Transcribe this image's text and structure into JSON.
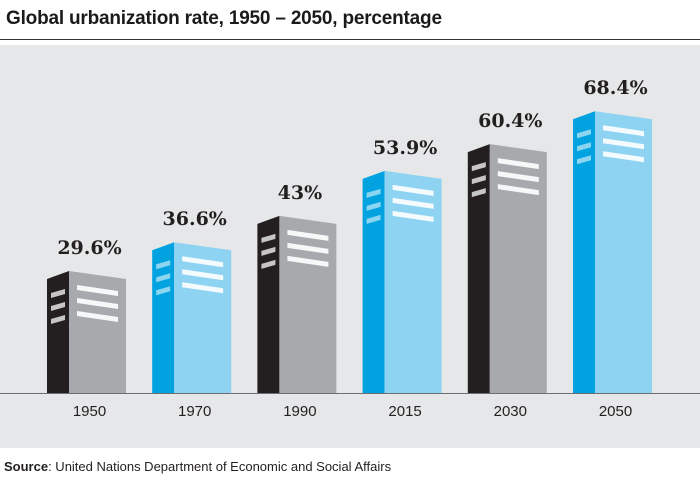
{
  "title": "Global urbanization rate, 1950 – 2050, percentage",
  "source": {
    "label": "Source",
    "text": ": United Nations Department of Economic and Social Affairs"
  },
  "colors": {
    "background": "#e6e7e8",
    "black_front": "#231f20",
    "grey_side": "#a7a9ac",
    "blue_front": "#00a3e0",
    "light_blue_side": "#8fd3f2"
  },
  "chart_data": {
    "type": "bar",
    "categories": [
      "1950",
      "1970",
      "1990",
      "2015",
      "2030",
      "2050"
    ],
    "values": [
      29.6,
      36.6,
      43,
      53.9,
      60.4,
      68.4
    ],
    "data_labels": [
      "29.6%",
      "36.6%",
      "43%",
      "53.9%",
      "60.4%",
      "68.4%"
    ],
    "bar_colors": [
      "black",
      "blue",
      "black",
      "blue",
      "black",
      "blue"
    ],
    "ylim": [
      0,
      75
    ],
    "grid": false,
    "style": "bars drawn as buildings with window stripes"
  }
}
